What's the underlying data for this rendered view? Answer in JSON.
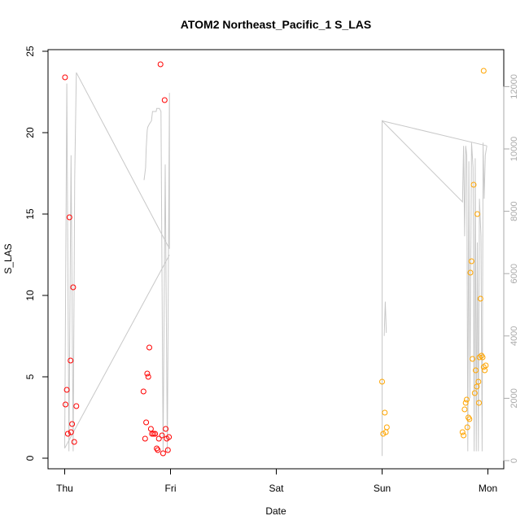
{
  "chart_data": {
    "type": "scatter",
    "title": "ATOM2 Northeast_Pacific_1 S_LAS",
    "xlabel": "Date",
    "ylabel": "S_LAS",
    "x_unit": "days",
    "xlim": [
      0,
      4.12
    ],
    "ylim": [
      0,
      25
    ],
    "x_ticks": [
      {
        "value": 0,
        "label": "Thu"
      },
      {
        "value": 1,
        "label": "Fri"
      },
      {
        "value": 2,
        "label": "Sat"
      },
      {
        "value": 3,
        "label": "Sun"
      },
      {
        "value": 4,
        "label": "Mon"
      }
    ],
    "y_ticks": [
      0,
      5,
      10,
      15,
      20,
      25
    ],
    "y2_ticks": [
      0,
      2000,
      4000,
      6000,
      8000,
      10000,
      12000
    ],
    "y2lim": [
      0,
      12450
    ],
    "colors": {
      "red": "#ff0000",
      "orange": "#ffa500",
      "line": "#c8c8c8",
      "y2_axis": "#aaaaaa"
    },
    "series": [
      {
        "color": "red",
        "points": [
          [
            0.003,
            23.4
          ],
          [
            0.008,
            3.3
          ],
          [
            0.02,
            4.2
          ],
          [
            0.03,
            1.5
          ],
          [
            0.045,
            14.8
          ],
          [
            0.055,
            6.0
          ],
          [
            0.06,
            1.6
          ],
          [
            0.07,
            2.1
          ],
          [
            0.08,
            10.5
          ],
          [
            0.09,
            1.0
          ],
          [
            0.11,
            3.2
          ],
          [
            0.745,
            4.1
          ],
          [
            0.76,
            1.2
          ],
          [
            0.77,
            2.2
          ],
          [
            0.78,
            5.2
          ],
          [
            0.79,
            5.0
          ],
          [
            0.8,
            6.8
          ],
          [
            0.815,
            1.8
          ],
          [
            0.825,
            1.5
          ],
          [
            0.84,
            1.5
          ],
          [
            0.855,
            1.5
          ],
          [
            0.87,
            0.6
          ],
          [
            0.88,
            0.5
          ],
          [
            0.89,
            1.2
          ],
          [
            0.905,
            24.2
          ],
          [
            0.92,
            1.4
          ],
          [
            0.93,
            0.3
          ],
          [
            0.945,
            22.0
          ],
          [
            0.955,
            1.8
          ],
          [
            0.965,
            1.2
          ],
          [
            0.975,
            0.5
          ],
          [
            0.985,
            1.3
          ]
        ]
      },
      {
        "color": "orange",
        "points": [
          [
            3.0,
            4.7
          ],
          [
            3.01,
            1.5
          ],
          [
            3.025,
            2.8
          ],
          [
            3.035,
            1.6
          ],
          [
            3.045,
            1.9
          ],
          [
            3.76,
            1.6
          ],
          [
            3.77,
            1.4
          ],
          [
            3.78,
            3.0
          ],
          [
            3.79,
            3.4
          ],
          [
            3.8,
            3.6
          ],
          [
            3.805,
            1.9
          ],
          [
            3.815,
            2.5
          ],
          [
            3.825,
            2.4
          ],
          [
            3.835,
            11.4
          ],
          [
            3.845,
            12.1
          ],
          [
            3.855,
            6.1
          ],
          [
            3.865,
            16.8
          ],
          [
            3.875,
            4.0
          ],
          [
            3.885,
            5.4
          ],
          [
            3.895,
            4.4
          ],
          [
            3.9,
            15.0
          ],
          [
            3.91,
            4.7
          ],
          [
            3.915,
            3.4
          ],
          [
            3.92,
            6.2
          ],
          [
            3.93,
            9.8
          ],
          [
            3.94,
            6.3
          ],
          [
            3.95,
            6.2
          ],
          [
            3.96,
            5.6
          ],
          [
            3.97,
            5.4
          ],
          [
            3.98,
            5.7
          ],
          [
            3.96,
            23.8
          ]
        ]
      }
    ],
    "secondary_line": {
      "color": "line",
      "axis": "right",
      "segments": [
        [
          [
            0.0,
            400
          ],
          [
            0.02,
            12100
          ],
          [
            0.04,
            300
          ],
          [
            0.06,
            9800
          ],
          [
            0.08,
            300
          ],
          [
            0.095,
            9100
          ],
          [
            0.11,
            12450
          ],
          [
            0.99,
            6800
          ],
          [
            0.99,
            11800
          ],
          [
            0.97,
            300
          ],
          [
            0.95,
            9500
          ],
          [
            0.93,
            300
          ],
          [
            0.91,
            11200
          ],
          [
            0.895,
            11300
          ],
          [
            0.87,
            11300
          ],
          [
            0.865,
            11200
          ],
          [
            0.83,
            11200
          ],
          [
            0.82,
            10900
          ],
          [
            0.8,
            10800
          ],
          [
            0.785,
            10700
          ],
          [
            0.78,
            10600
          ],
          [
            0.77,
            10000
          ],
          [
            0.765,
            9400
          ],
          [
            0.75,
            9000
          ]
        ],
        [
          [
            3.0,
            150
          ],
          [
            3.0,
            10900
          ],
          [
            3.76,
            8300
          ],
          [
            3.77,
            10100
          ],
          [
            3.78,
            7200
          ],
          [
            3.79,
            10100
          ],
          [
            3.8,
            9800
          ],
          [
            3.81,
            300
          ],
          [
            3.82,
            9600
          ],
          [
            3.83,
            2000
          ],
          [
            3.845,
            10200
          ],
          [
            3.86,
            9400
          ],
          [
            3.87,
            300
          ],
          [
            3.88,
            9700
          ],
          [
            3.89,
            300
          ],
          [
            3.9,
            7000
          ],
          [
            3.91,
            300
          ],
          [
            3.92,
            8400
          ],
          [
            3.935,
            7200
          ],
          [
            3.945,
            300
          ],
          [
            3.955,
            10200
          ],
          [
            3.965,
            8400
          ],
          [
            3.975,
            9800
          ],
          [
            3.99,
            10100
          ]
        ],
        [
          [
            3.0,
            10900
          ],
          [
            3.99,
            10100
          ]
        ],
        [
          [
            3.02,
            4000
          ],
          [
            3.03,
            5100
          ],
          [
            3.04,
            4100
          ]
        ],
        [
          [
            0.0,
            400
          ],
          [
            0.99,
            6600
          ]
        ]
      ]
    }
  }
}
